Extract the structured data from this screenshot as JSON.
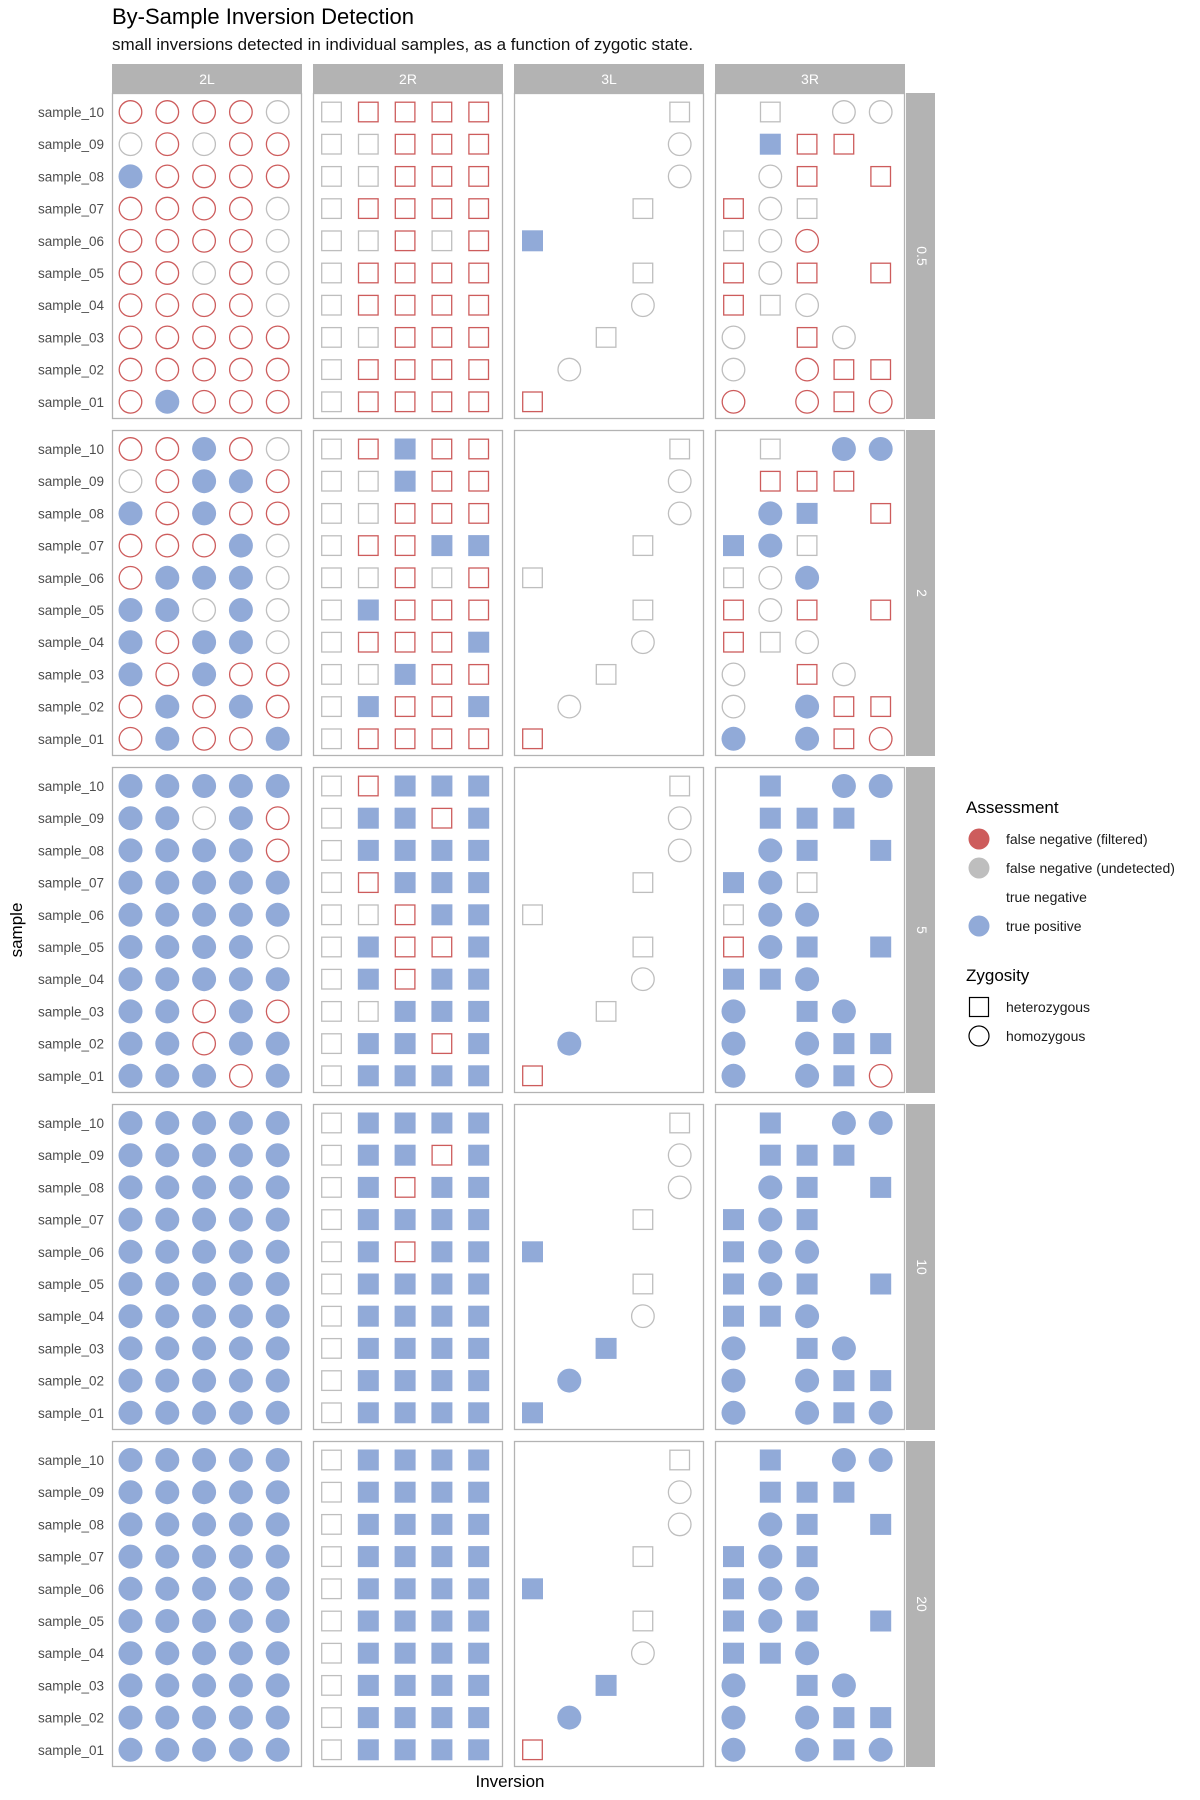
{
  "chart_data": {
    "type": "scatter",
    "title": "By-Sample Inversion Detection",
    "subtitle": "small inversions detected in individual samples, as a function of zygotic state.",
    "xlabel": "Inversion",
    "ylabel": "sample",
    "columns": [
      "2L",
      "2R",
      "3L",
      "3R"
    ],
    "rows": [
      "0.5",
      "2",
      "5",
      "10",
      "20"
    ],
    "samples": [
      "sample_10",
      "sample_09",
      "sample_08",
      "sample_07",
      "sample_06",
      "sample_05",
      "sample_04",
      "sample_03",
      "sample_02",
      "sample_01"
    ],
    "legend": {
      "assessment_title": "Assessment",
      "assessment": [
        {
          "code": "R",
          "label": "false negative (filtered)",
          "color": "#CD5C5C"
        },
        {
          "code": "G",
          "label": "false negative (undetected)",
          "color": "#BEBEBE"
        },
        {
          "code": "N",
          "label": "true negative",
          "color": "#FFFFFF"
        },
        {
          "code": "B",
          "label": "true positive",
          "color": "#91AAD8"
        }
      ],
      "zygosity_title": "Zygosity",
      "zygosity": [
        {
          "shape": "square",
          "label": "heterozygous"
        },
        {
          "shape": "circle",
          "label": "homozygous"
        }
      ]
    },
    "encoding_note": "cells: two chars per inversion = shape (s=heterozygous, c=homozygous) + assessment code; '..' = no point. strings listed sample_10 first.",
    "cells": {
      "0.5": {
        "2L": [
          "cRcRcRcRcG",
          "cGcRcGcRcR",
          "cBcRcRcRcR",
          "cRcRcRcRcG",
          "cRcRcRcRcG",
          "cRcRcGcRcG",
          "cRcRcRcRcG",
          "cRcRcRcRcR",
          "cRcRcRcRcR",
          "cRcBcRcRcR"
        ],
        "2R": [
          "sGsRsRsRsR",
          "sGsGsRsRsR",
          "sGsGsRsRsR",
          "sGsRsRsRsR",
          "sGsGsRsGsR",
          "sGsRsRsRsR",
          "sGsRsRsRsR",
          "sGsGsRsRsR",
          "sGsRsRsRsR",
          "sGsRsRsRsR"
        ],
        "3L": [
          "........sG",
          "........cG",
          "........cG",
          "......sG..",
          "sB........",
          "......sG..",
          "......cG..",
          "....sG....",
          "..cG......",
          "sR........"
        ],
        "3R": [
          "..sG..cGcG",
          "..sBsRsR..",
          "..cGsR..sR",
          "sRcGsG....",
          "sGcGcR....",
          "sRcGsR..sR",
          "sRsGcG....",
          "cG..sRcG..",
          "cG..cRsRsR",
          "cR..cRsRcR"
        ]
      },
      "2": {
        "2L": [
          "cRcRcBcRcG",
          "cGcRcBcBcR",
          "cBcRcBcRcR",
          "cRcRcRcBcG",
          "cRcBcBcBcG",
          "cBcBcGcBcG",
          "cBcRcBcBcG",
          "cBcRcBcRcR",
          "cRcBcRcBcR",
          "cRcBcRcRcB"
        ],
        "2R": [
          "sGsRsBsRsR",
          "sGsGsBsRsR",
          "sGsGsRsRsR",
          "sGsRsRsBsB",
          "sGsGsRsGsR",
          "sGsBsRsRsR",
          "sGsRsRsRsB",
          "sGsGsBsRsR",
          "sGsBsRsRsB",
          "sGsRsRsRsR"
        ],
        "3L": [
          "........sG",
          "........cG",
          "........cG",
          "......sG..",
          "sG........",
          "......sG..",
          "......cG..",
          "....sG....",
          "..cG......",
          "sR........"
        ],
        "3R": [
          "..sG..cBcB",
          "..sRsRsR..",
          "..cBsB..sR",
          "sBcBsG....",
          "sGcGcB....",
          "sRcGsR..sR",
          "sRsGcG....",
          "cG..sRcG..",
          "cG..cBsRsR",
          "cB..cBsRcR"
        ]
      },
      "5": {
        "2L": [
          "cBcBcBcBcB",
          "cBcBcGcBcR",
          "cBcBcBcBcR",
          "cBcBcBcBcB",
          "cBcBcBcBcB",
          "cBcBcBcBcG",
          "cBcBcBcBcB",
          "cBcBcRcBcR",
          "cBcBcRcBcB",
          "cBcBcBcRcB"
        ],
        "2R": [
          "sGsRsBsBsB",
          "sGsBsBsRsB",
          "sGsBsBsBsB",
          "sGsRsBsBsB",
          "sGsGsRsBsB",
          "sGsBsRsRsB",
          "sGsBsRsBsB",
          "sGsGsBsBsB",
          "sGsBsBsRsB",
          "sGsBsBsBsB"
        ],
        "3L": [
          "........sG",
          "........cG",
          "........cG",
          "......sG..",
          "sG........",
          "......sG..",
          "......cG..",
          "....sG....",
          "..cB......",
          "sR........"
        ],
        "3R": [
          "..sB..cBcB",
          "..sBsBsB..",
          "..cBsB..sB",
          "sBcBsG....",
          "sGcBcB....",
          "sRcBsB..sB",
          "sBsBcB....",
          "cB..sBcB..",
          "cB..cBsBsB",
          "cB..cBsBcR"
        ]
      },
      "10": {
        "2L": [
          "cBcBcBcBcB",
          "cBcBcBcBcB",
          "cBcBcBcBcB",
          "cBcBcBcBcB",
          "cBcBcBcBcB",
          "cBcBcBcBcB",
          "cBcBcBcBcB",
          "cBcBcBcBcB",
          "cBcBcBcBcB",
          "cBcBcBcBcB"
        ],
        "2R": [
          "sGsBsBsBsB",
          "sGsBsBsRsB",
          "sGsBsRsBsB",
          "sGsBsBsBsB",
          "sGsBsRsBsB",
          "sGsBsBsBsB",
          "sGsBsBsBsB",
          "sGsBsBsBsB",
          "sGsBsBsBsB",
          "sGsBsBsBsB"
        ],
        "3L": [
          "........sG",
          "........cG",
          "........cG",
          "......sG..",
          "sB........",
          "......sG..",
          "......cG..",
          "....sB....",
          "..cB......",
          "sB........"
        ],
        "3R": [
          "..sB..cBcB",
          "..sBsBsB..",
          "..cBsB..sB",
          "sBcBsB....",
          "sBcBcB....",
          "sBcBsB..sB",
          "sBsBcB....",
          "cB..sBcB..",
          "cB..cBsBsB",
          "cB..cBsBcB"
        ]
      },
      "20": {
        "2L": [
          "cBcBcBcBcB",
          "cBcBcBcBcB",
          "cBcBcBcBcB",
          "cBcBcBcBcB",
          "cBcBcBcBcB",
          "cBcBcBcBcB",
          "cBcBcBcBcB",
          "cBcBcBcBcB",
          "cBcBcBcBcB",
          "cBcBcBcBcB"
        ],
        "2R": [
          "sGsBsBsBsB",
          "sGsBsBsBsB",
          "sGsBsBsBsB",
          "sGsBsBsBsB",
          "sGsBsBsBsB",
          "sGsBsBsBsB",
          "sGsBsBsBsB",
          "sGsBsBsBsB",
          "sGsBsBsBsB",
          "sGsBsBsBsB"
        ],
        "3L": [
          "........sG",
          "........cG",
          "........cG",
          "......sG..",
          "sB........",
          "......sG..",
          "......cG..",
          "....sB....",
          "..cB......",
          "sR........"
        ],
        "3R": [
          "..sB..cBcB",
          "..sBsBsB..",
          "..cBsB..sB",
          "sBcBsB....",
          "sBcBcB....",
          "sBcBsB..sB",
          "sBsBcB....",
          "cB..sBcB..",
          "cB..cBsBsB",
          "cB..cBsBcB"
        ]
      }
    }
  }
}
